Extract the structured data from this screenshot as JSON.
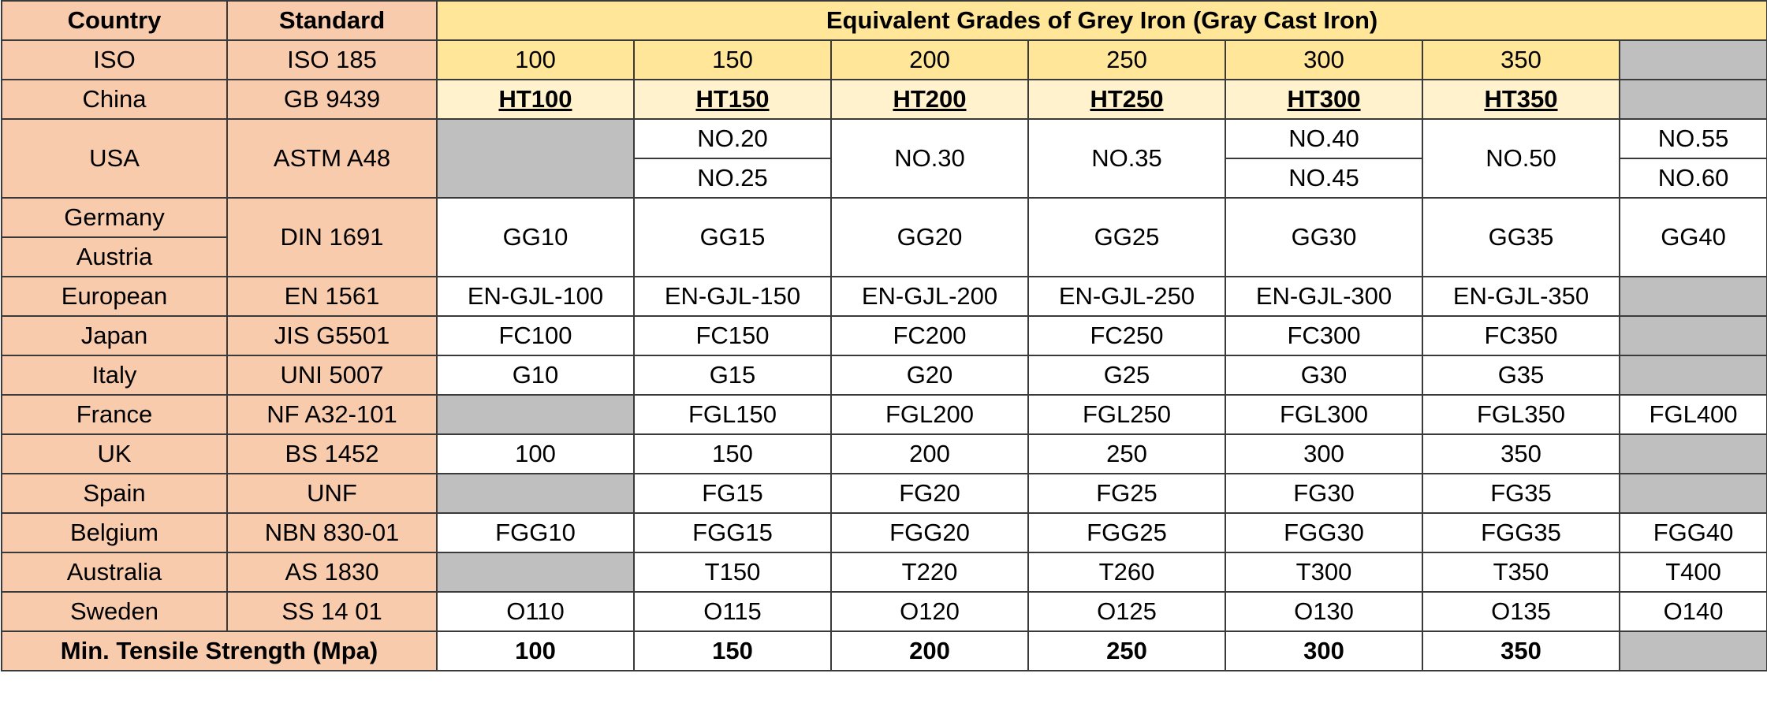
{
  "header": {
    "country": "Country",
    "standard": "Standard",
    "title": "Equivalent Grades of Grey Iron (Gray Cast Iron)"
  },
  "iso": {
    "country": "ISO",
    "standard": "ISO 185",
    "grades": [
      "100",
      "150",
      "200",
      "250",
      "300",
      "350"
    ]
  },
  "china": {
    "country": "China",
    "standard": "GB 9439",
    "grades": [
      "HT100",
      "HT150",
      "HT200",
      "HT250",
      "HT300",
      "HT350"
    ]
  },
  "usa": {
    "country": "USA",
    "standard": "ASTM A48",
    "g150a": "NO.20",
    "g150b": "NO.25",
    "g200": "NO.30",
    "g250": "NO.35",
    "g300a": "NO.40",
    "g300b": "NO.45",
    "g350": "NO.50",
    "gextra_a": "NO.55",
    "gextra_b": "NO.60"
  },
  "din": {
    "country_a": "Germany",
    "country_b": "Austria",
    "standard": "DIN 1691",
    "grades": [
      "GG10",
      "GG15",
      "GG20",
      "GG25",
      "GG30",
      "GG35",
      "GG40"
    ]
  },
  "rows": [
    {
      "country": "European",
      "standard": "EN 1561",
      "grades": [
        "EN-GJL-100",
        "EN-GJL-150",
        "EN-GJL-200",
        "EN-GJL-250",
        "EN-GJL-300",
        "EN-GJL-350",
        ""
      ]
    },
    {
      "country": "Japan",
      "standard": "JIS G5501",
      "grades": [
        "FC100",
        "FC150",
        "FC200",
        "FC250",
        "FC300",
        "FC350",
        ""
      ]
    },
    {
      "country": "Italy",
      "standard": "UNI 5007",
      "grades": [
        "G10",
        "G15",
        "G20",
        "G25",
        "G30",
        "G35",
        ""
      ]
    },
    {
      "country": "France",
      "standard": "NF A32-101",
      "grades": [
        "",
        "FGL150",
        "FGL200",
        "FGL250",
        "FGL300",
        "FGL350",
        "FGL400"
      ]
    },
    {
      "country": "UK",
      "standard": "BS 1452",
      "grades": [
        "100",
        "150",
        "200",
        "250",
        "300",
        "350",
        ""
      ]
    },
    {
      "country": "Spain",
      "standard": "UNF",
      "grades": [
        "",
        "FG15",
        "FG20",
        "FG25",
        "FG30",
        "FG35",
        ""
      ]
    },
    {
      "country": "Belgium",
      "standard": "NBN 830-01",
      "grades": [
        "FGG10",
        "FGG15",
        "FGG20",
        "FGG25",
        "FGG30",
        "FGG35",
        "FGG40"
      ]
    },
    {
      "country": "Australia",
      "standard": "AS 1830",
      "grades": [
        "",
        "T150",
        "T220",
        "T260",
        "T300",
        "T350",
        "T400"
      ]
    },
    {
      "country": "Sweden",
      "standard": "SS 14 01",
      "grades": [
        "O110",
        "O115",
        "O120",
        "O125",
        "O130",
        "O135",
        "O140"
      ]
    }
  ],
  "tensile": {
    "label": "Min. Tensile Strength (Mpa)",
    "values": [
      "100",
      "150",
      "200",
      "250",
      "300",
      "350",
      ""
    ]
  },
  "colors": {
    "label_bg": "#f8cbad",
    "header_yellow": "#ffe699",
    "china_yellow": "#fff2cc",
    "empty_grey": "#bfbfbf"
  }
}
